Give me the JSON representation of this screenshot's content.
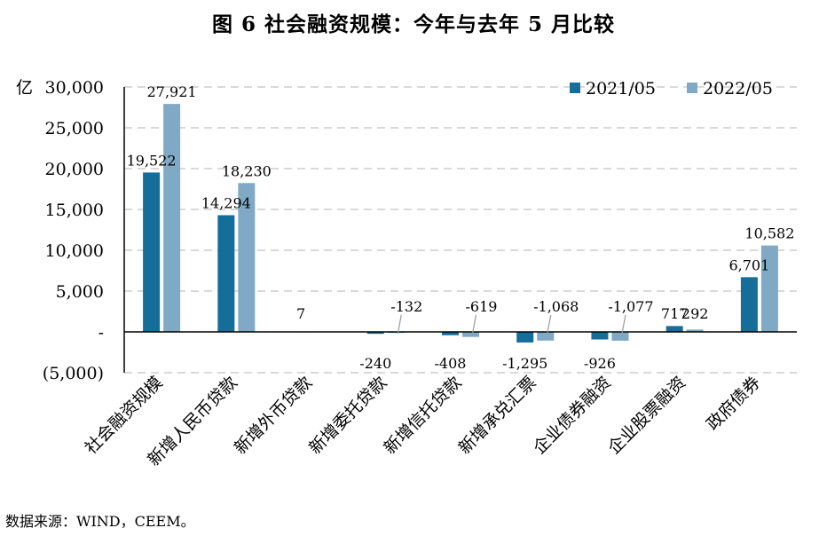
{
  "page": {
    "title": "图 6  社会融资规模：今年与去年 5 月比较",
    "source": "数据来源：WIND，CEEM。"
  },
  "chart_data": {
    "type": "bar",
    "title": "图 6  社会融资规模：今年与去年 5 月比较",
    "ylabel": "亿",
    "xlabel": "",
    "ylim": [
      -5000,
      30000
    ],
    "yticks": [
      30000,
      25000,
      20000,
      15000,
      10000,
      5000,
      0,
      -5000
    ],
    "ytick_labels": [
      "30,000",
      "25,000",
      "20,000",
      "15,000",
      "10,000",
      "5,000",
      "-",
      "(5,000)"
    ],
    "grid": true,
    "legend_position": "top-right",
    "categories": [
      "社会融资规模",
      "新增人民币贷款",
      "新增外币贷款",
      "新增委托贷款",
      "新增信托贷款",
      "新增承兑汇票",
      "企业债券融资",
      "企业股票融资",
      "政府债券"
    ],
    "series": [
      {
        "name": "2021/05",
        "color": "#156d9a",
        "values": [
          19522,
          14294,
          7,
          -240,
          -408,
          -1295,
          -926,
          717,
          6701
        ],
        "labels": [
          "19,522",
          "14,294",
          "7",
          "-240",
          "-408",
          "-1,295",
          "-926",
          "717",
          "6,701"
        ]
      },
      {
        "name": "2022/05",
        "color": "#7fa9c5",
        "values": [
          27921,
          18230,
          null,
          -132,
          -619,
          -1068,
          -1077,
          292,
          10582
        ],
        "labels": [
          "27,921",
          "18,230",
          "",
          "-132",
          "-619",
          "-1,068",
          "-1,077",
          "292",
          "10,582"
        ]
      }
    ]
  }
}
